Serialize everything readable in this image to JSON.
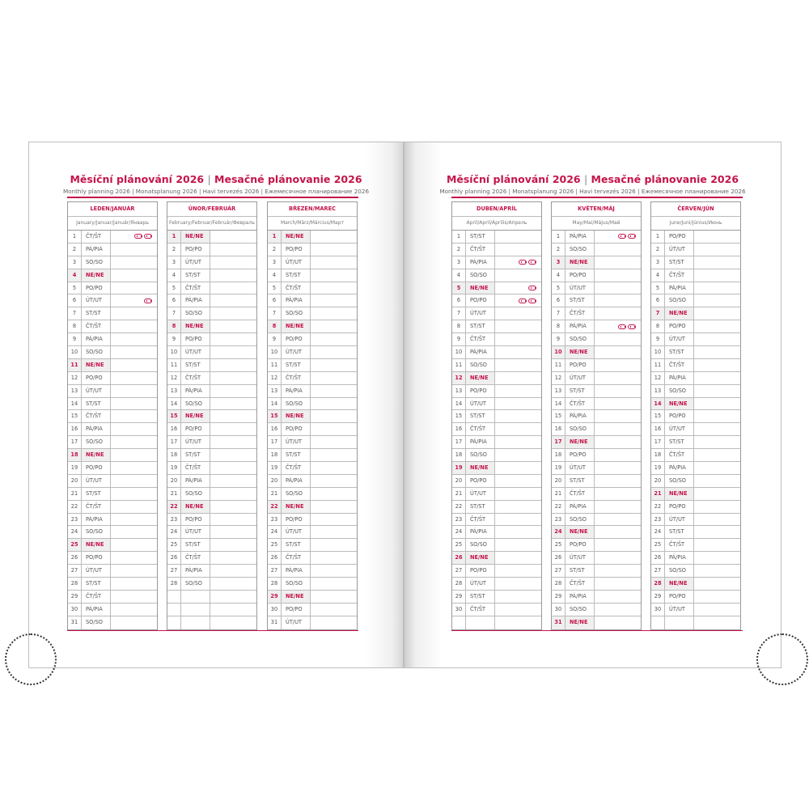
{
  "title_cz": "Měsíční plánování 2026",
  "title_sk": "Mesačné plánovanie 2026",
  "subtitle": "Monthly planning 2026 | Monatsplanung 2026 | Havi tervezés 2026 | Ежемесячное планирование 2026",
  "accent_color": "#c4154a",
  "months": [
    {
      "name": "LEDEN/JANUÁR",
      "sub": "January/Januar/Január/Январь",
      "days": [
        "ČT/ŠT",
        "PÁ/PIA",
        "SO/SO",
        "NE/NE",
        "PO/PO",
        "ÚT/UT",
        "ST/ST",
        "ČT/ŠT",
        "PÁ/PIA",
        "SO/SO",
        "NE/NE",
        "PO/PO",
        "ÚT/UT",
        "ST/ST",
        "ČT/ŠT",
        "PÁ/PIA",
        "SO/SO",
        "NE/NE",
        "PO/PO",
        "ÚT/UT",
        "ST/ST",
        "ČT/ŠT",
        "PÁ/PIA",
        "SO/SO",
        "NE/NE",
        "PO/PO",
        "ÚT/UT",
        "ST/ST",
        "ČT/ŠT",
        "PÁ/PIA",
        "SO/SO"
      ],
      "holidays": {
        "1": [
          "holiday-cz-icon",
          "holiday-sk-icon"
        ],
        "6": [
          "holiday-sk-icon"
        ]
      }
    },
    {
      "name": "ÚNOR/FEBRUÁR",
      "sub": "February/Februar/Február/Февраль",
      "days": [
        "NE/NE",
        "PO/PO",
        "ÚT/UT",
        "ST/ST",
        "ČT/ŠT",
        "PÁ/PIA",
        "SO/SO",
        "NE/NE",
        "PO/PO",
        "ÚT/UT",
        "ST/ST",
        "ČT/ŠT",
        "PÁ/PIA",
        "SO/SO",
        "NE/NE",
        "PO/PO",
        "ÚT/UT",
        "ST/ST",
        "ČT/ŠT",
        "PÁ/PIA",
        "SO/SO",
        "NE/NE",
        "PO/PO",
        "ÚT/UT",
        "ST/ST",
        "ČT/ŠT",
        "PÁ/PIA",
        "SO/SO"
      ],
      "holidays": {}
    },
    {
      "name": "BŘEZEN/MAREC",
      "sub": "March/März/Március/Март",
      "days": [
        "NE/NE",
        "PO/PO",
        "ÚT/UT",
        "ST/ST",
        "ČT/ŠT",
        "PÁ/PIA",
        "SO/SO",
        "NE/NE",
        "PO/PO",
        "ÚT/UT",
        "ST/ST",
        "ČT/ŠT",
        "PÁ/PIA",
        "SO/SO",
        "NE/NE",
        "PO/PO",
        "ÚT/UT",
        "ST/ST",
        "ČT/ŠT",
        "PÁ/PIA",
        "SO/SO",
        "NE/NE",
        "PO/PO",
        "ÚT/UT",
        "ST/ST",
        "ČT/ŠT",
        "PÁ/PIA",
        "SO/SO",
        "NE/NE",
        "PO/PO",
        "ÚT/UT"
      ],
      "holidays": {}
    },
    {
      "name": "DUBEN/APRÍL",
      "sub": "April/April/Április/Апрель",
      "days": [
        "ST/ST",
        "ČT/ŠT",
        "PÁ/PIA",
        "SO/SO",
        "NE/NE",
        "PO/PO",
        "ÚT/UT",
        "ST/ST",
        "ČT/ŠT",
        "PÁ/PIA",
        "SO/SO",
        "NE/NE",
        "PO/PO",
        "ÚT/UT",
        "ST/ST",
        "ČT/ŠT",
        "PÁ/PIA",
        "SO/SO",
        "NE/NE",
        "PO/PO",
        "ÚT/UT",
        "ST/ST",
        "ČT/ŠT",
        "PÁ/PIA",
        "SO/SO",
        "NE/NE",
        "PO/PO",
        "ÚT/UT",
        "ST/ST",
        "ČT/ŠT"
      ],
      "holidays": {
        "3": [
          "holiday-cz-icon",
          "holiday-sk-icon"
        ],
        "5": [
          "holiday-sk-icon"
        ],
        "6": [
          "holiday-cz-icon",
          "holiday-sk-icon"
        ]
      }
    },
    {
      "name": "KVĚTEN/MÁJ",
      "sub": "May/Mai/Május/Май",
      "days": [
        "PÁ/PIA",
        "SO/SO",
        "NE/NE",
        "PO/PO",
        "ÚT/UT",
        "ST/ST",
        "ČT/ŠT",
        "PÁ/PIA",
        "SO/SO",
        "NE/NE",
        "PO/PO",
        "ÚT/UT",
        "ST/ST",
        "ČT/ŠT",
        "PÁ/PIA",
        "SO/SO",
        "NE/NE",
        "PO/PO",
        "ÚT/UT",
        "ST/ST",
        "ČT/ŠT",
        "PÁ/PIA",
        "SO/SO",
        "NE/NE",
        "PO/PO",
        "ÚT/UT",
        "ST/ST",
        "ČT/ŠT",
        "PÁ/PIA",
        "SO/SO",
        "NE/NE"
      ],
      "holidays": {
        "1": [
          "holiday-cz-icon",
          "holiday-sk-icon"
        ],
        "8": [
          "holiday-cz-icon",
          "holiday-sk-icon"
        ]
      }
    },
    {
      "name": "ČERVEN/JÚN",
      "sub": "June/Juni/Június/Июнь",
      "days": [
        "PO/PO",
        "ÚT/UT",
        "ST/ST",
        "ČT/ŠT",
        "PÁ/PIA",
        "SO/SO",
        "NE/NE",
        "PO/PO",
        "ÚT/UT",
        "ST/ST",
        "ČT/ŠT",
        "PÁ/PIA",
        "SO/SO",
        "NE/NE",
        "PO/PO",
        "ÚT/UT",
        "ST/ST",
        "ČT/ŠT",
        "PÁ/PIA",
        "SO/SO",
        "NE/NE",
        "PO/PO",
        "ÚT/UT",
        "ST/ST",
        "ČT/ŠT",
        "PÁ/PIA",
        "SO/SO",
        "NE/NE",
        "PO/PO",
        "ÚT/UT"
      ],
      "holidays": {}
    }
  ]
}
